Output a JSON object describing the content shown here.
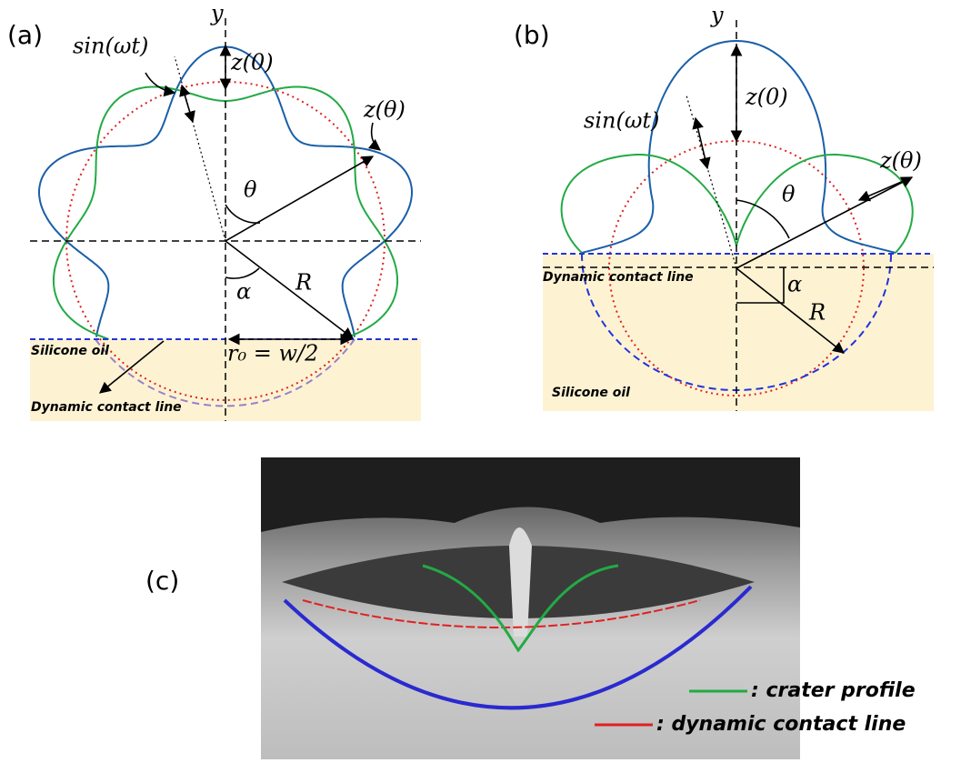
{
  "panels": {
    "a": {
      "label": "(a)",
      "y_axis": "y",
      "oscillation": "sin(ωt)",
      "z0": "z(0)",
      "ztheta": "z(θ)",
      "theta": "θ",
      "alpha": "α",
      "radius": "R",
      "r0": "r₀ = w/2",
      "oil": "Silicone oil",
      "contact_line": "Dynamic contact line"
    },
    "b": {
      "label": "(b)",
      "y_axis": "y",
      "oscillation": "sin(ωt)",
      "z0": "z(0)",
      "ztheta": "z(θ)",
      "theta": "θ",
      "alpha": "α",
      "radius": "R",
      "contact_line": "Dynamic contact line",
      "oil": "Silicone oil"
    },
    "c": {
      "label": "(c)",
      "legend": [
        ": crater profile",
        ": dynamic contact line"
      ]
    }
  }
}
